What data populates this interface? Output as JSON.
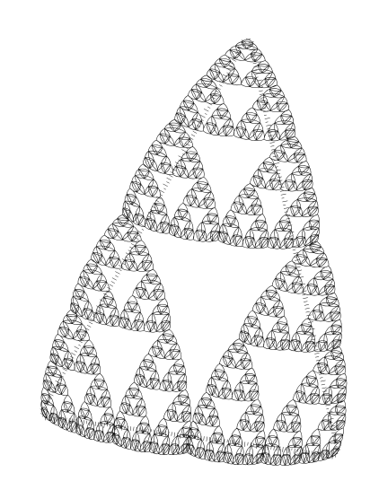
{
  "figure": {
    "background_color": "#ffffff",
    "stroke_color": "#111111",
    "recursion_depth": 6
  }
}
